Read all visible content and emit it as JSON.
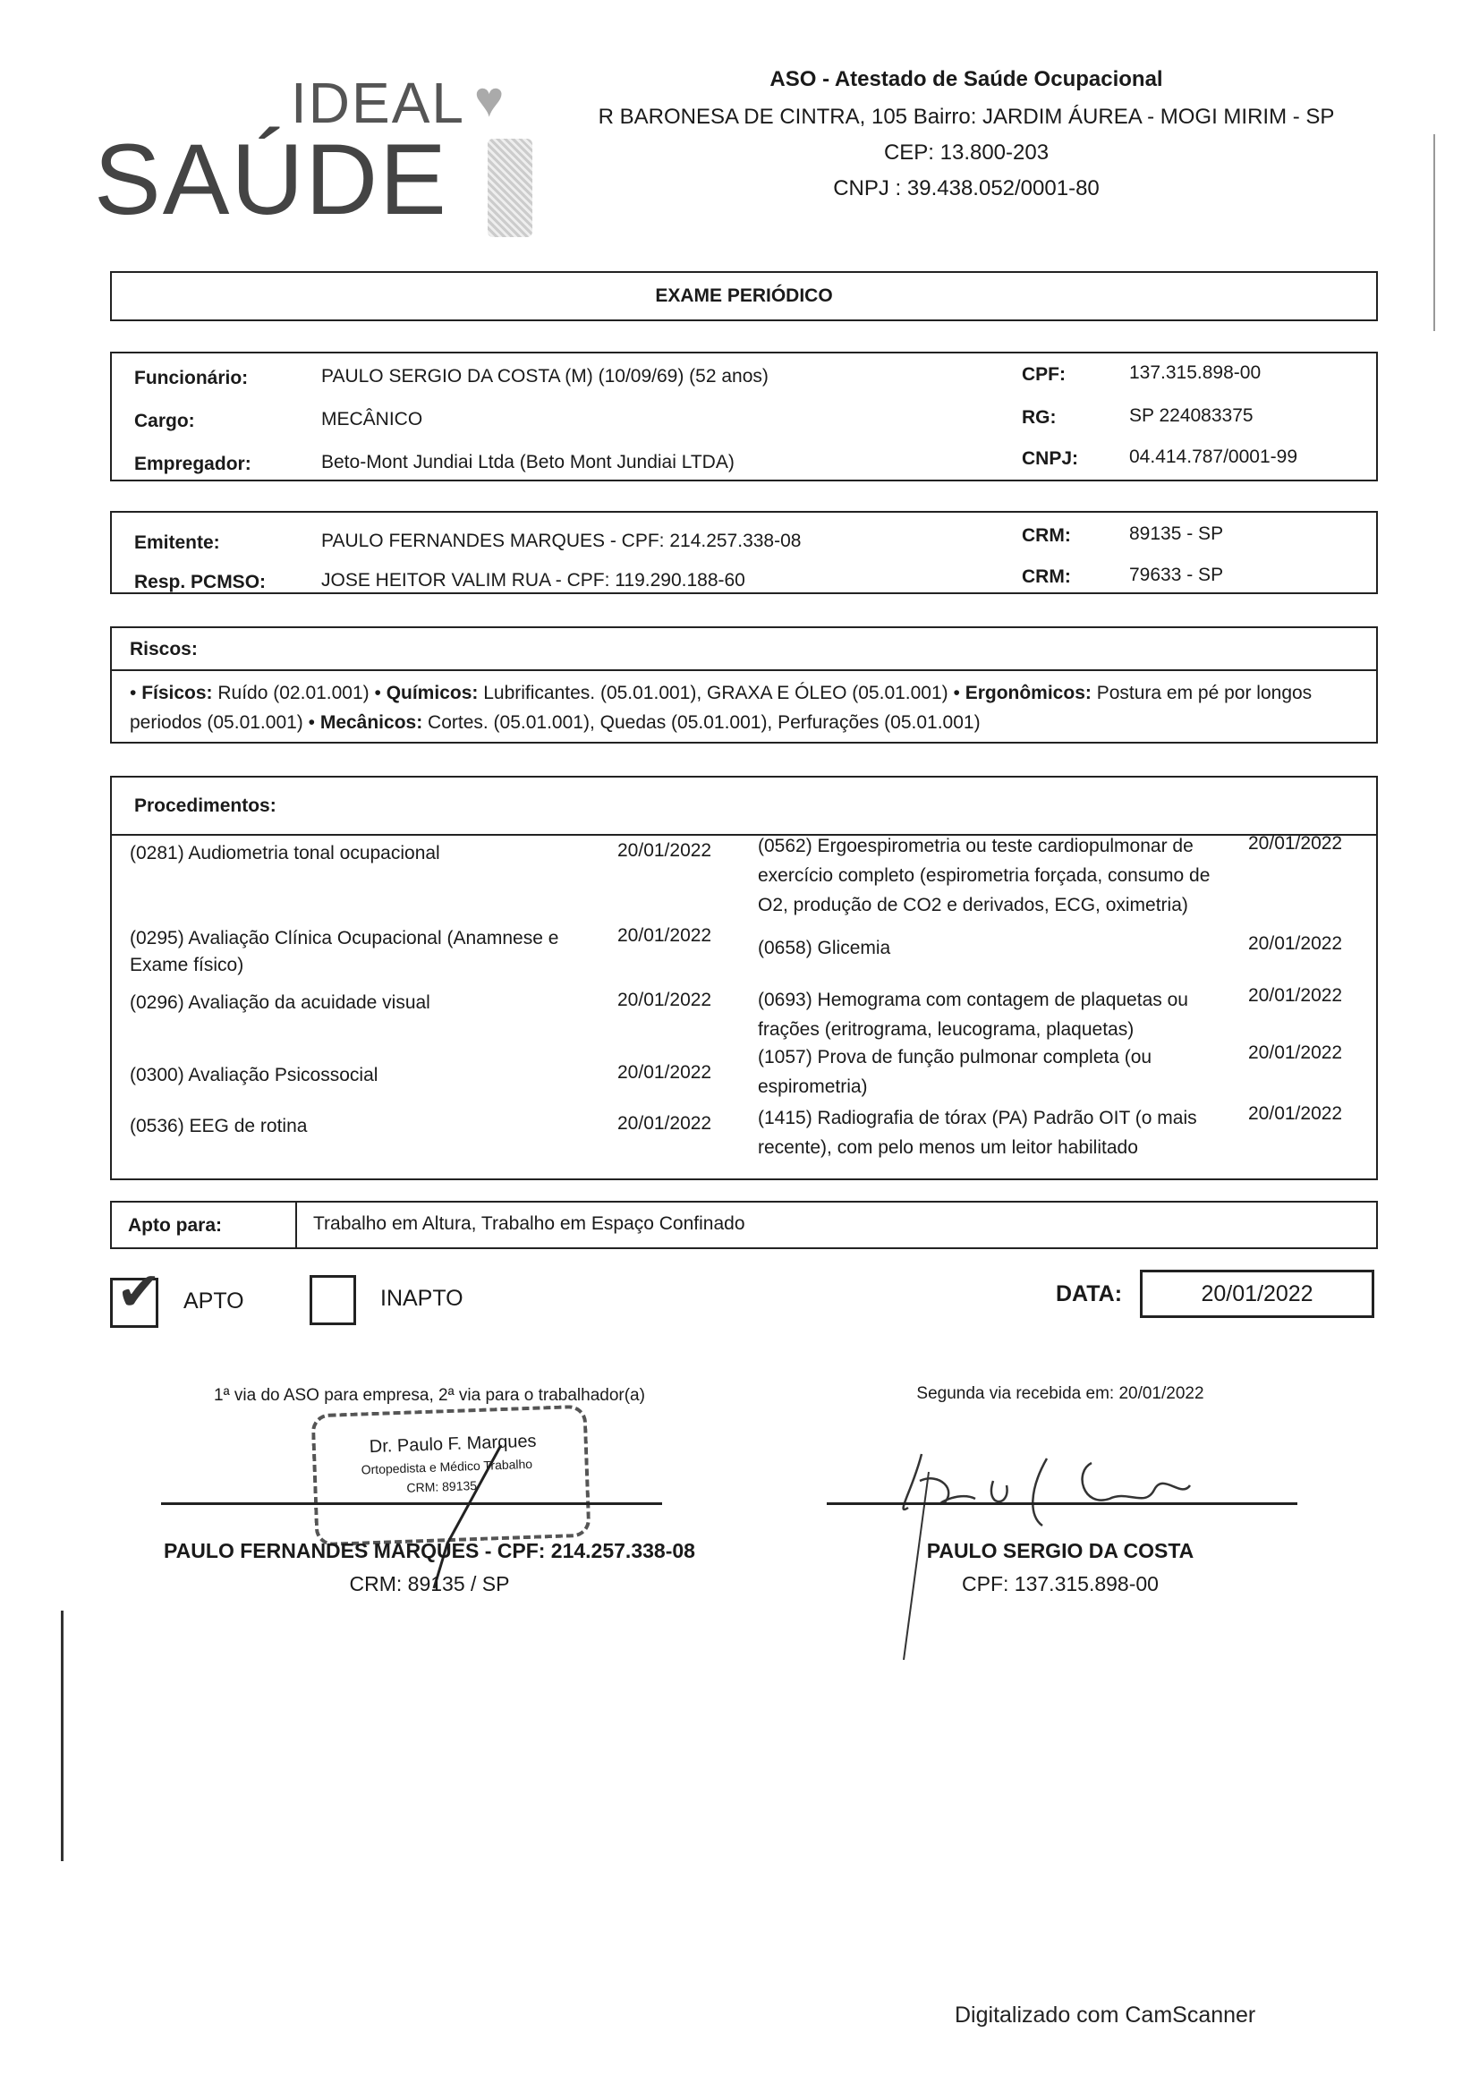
{
  "logo": {
    "top": "IDEAL",
    "bottom": "SAÚDE"
  },
  "header": {
    "title": "ASO - Atestado de Saúde Ocupacional",
    "address": "R BARONESA DE CINTRA, 105 Bairro: JARDIM ÁUREA - MOGI MIRIM - SP",
    "cep": "CEP: 13.800-203",
    "cnpj": "CNPJ : 39.438.052/0001-80"
  },
  "exam_type": "EXAME PERIÓDICO",
  "employee": {
    "funcionario_label": "Funcionário:",
    "funcionario": "PAULO SERGIO DA COSTA (M) (10/09/69) (52 anos)",
    "cargo_label": "Cargo:",
    "cargo": "MECÂNICO",
    "empregador_label": "Empregador:",
    "empregador": "Beto-Mont Jundiai Ltda (Beto Mont Jundiai LTDA)",
    "cpf_label": "CPF:",
    "cpf": "137.315.898-00",
    "rg_label": "RG:",
    "rg": "SP 224083375",
    "cnpj_label": "CNPJ:",
    "cnpj": "04.414.787/0001-99"
  },
  "issuer": {
    "emitente_label": "Emitente:",
    "emitente": "PAULO FERNANDES MARQUES - CPF: 214.257.338-08",
    "crm1_label": "CRM:",
    "crm1": "89135 - SP",
    "resp_label": "Resp. PCMSO:",
    "resp": "JOSE HEITOR VALIM RUA - CPF: 119.290.188-60",
    "crm2_label": "CRM:",
    "crm2": "79633 - SP"
  },
  "risks": {
    "title": "Riscos:",
    "fisicos_label": "Físicos:",
    "fisicos": " Ruído (02.01.001) • ",
    "quimicos_label": "Químicos:",
    "quimicos": " Lubrificantes. (05.01.001), GRAXA E ÓLEO (05.01.001) • ",
    "ergonomicos_label": "Ergonômicos:",
    "ergonomicos": " Postura em pé por longos periodos (05.01.001) • ",
    "mecanicos_label": "Mecânicos:",
    "mecanicos": " Cortes. (05.01.001), Quedas (05.01.001), Perfurações (05.01.001)"
  },
  "procedures": {
    "title": "Procedimentos:",
    "left": [
      {
        "name": "(0281) Audiometria tonal ocupacional",
        "date": "20/01/2022"
      },
      {
        "name": "(0295) Avaliação Clínica Ocupacional (Anamnese e Exame físico)",
        "date": "20/01/2022"
      },
      {
        "name": "(0296) Avaliação da acuidade visual",
        "date": "20/01/2022"
      },
      {
        "name": "(0300) Avaliação Psicossocial",
        "date": "20/01/2022"
      },
      {
        "name": "(0536) EEG de rotina",
        "date": "20/01/2022"
      }
    ],
    "right": [
      {
        "name": "(0562) Ergoespirometria ou teste cardiopulmonar de exercício completo (espirometria forçada, consumo de O2, produção de CO2 e derivados, ECG, oximetria)",
        "date": "20/01/2022"
      },
      {
        "name": "(0658) Glicemia",
        "date": "20/01/2022"
      },
      {
        "name": "(0693) Hemograma com contagem de plaquetas ou frações (eritrograma, leucograma, plaquetas)",
        "date": "20/01/2022"
      },
      {
        "name": "(1057) Prova de função pulmonar completa (ou espirometria)",
        "date": "20/01/2022"
      },
      {
        "name": "(1415) Radiografia de tórax (PA) Padrão OIT (o mais recente), com pelo menos um leitor habilitado",
        "date": "20/01/2022"
      }
    ]
  },
  "apto_para": {
    "label": "Apto para:",
    "value": "Trabalho em Altura, Trabalho em Espaço Confinado"
  },
  "result": {
    "apto": "APTO",
    "apto_checked": true,
    "inapto": "INAPTO",
    "inapto_checked": false,
    "data_label": "DATA:",
    "data": "20/01/2022"
  },
  "signatures": {
    "left_note": "1ª via do ASO para empresa, 2ª via para o trabalhador(a)",
    "stamp_name": "Dr. Paulo F. Marques",
    "stamp_role": "Ortopedista e Médico Trabalho",
    "stamp_crm": "CRM: 89135",
    "left_name": "PAULO FERNANDES MARQUES - CPF: 214.257.338-08",
    "left_crm": "CRM: 89135 / SP",
    "right_note": "Segunda via recebida em: 20/01/2022",
    "right_name": "PAULO SERGIO DA COSTA",
    "right_cpf": "CPF: 137.315.898-00"
  },
  "footer": "Digitalizado com CamScanner"
}
